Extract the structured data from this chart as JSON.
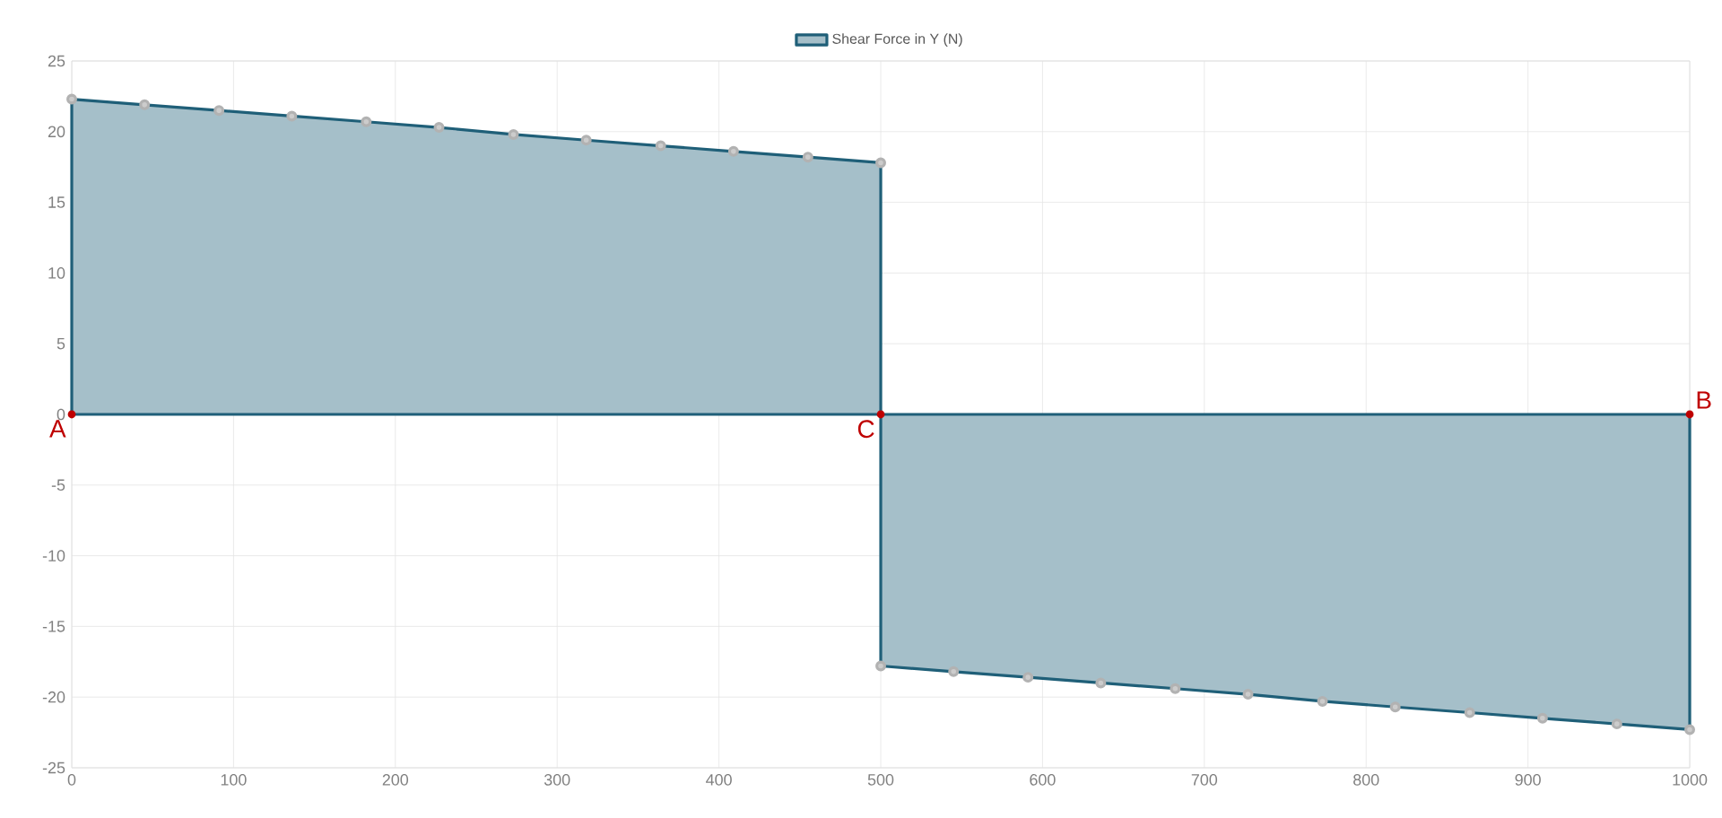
{
  "chart_data": {
    "type": "area",
    "legend": "top",
    "grid": true,
    "marker": "circle",
    "xlim": [
      0,
      1000
    ],
    "xticks": [
      0,
      100,
      200,
      300,
      400,
      500,
      600,
      700,
      800,
      900,
      1000
    ],
    "ylim": [
      -25,
      25
    ],
    "yticks": [
      -25,
      -20,
      -15,
      -10,
      -5,
      0,
      5,
      10,
      15,
      20,
      25
    ],
    "series": [
      {
        "name": "Shear Force in Y (N)",
        "color": "#1f5f78",
        "x": [
          0,
          45,
          91,
          136,
          182,
          227,
          273,
          318,
          364,
          409,
          455,
          500,
          500,
          545,
          591,
          636,
          682,
          727,
          773,
          818,
          864,
          909,
          955,
          1000
        ],
        "values": [
          22.3,
          21.9,
          21.5,
          21.1,
          20.7,
          20.3,
          19.8,
          19.4,
          19.0,
          18.6,
          18.2,
          17.8,
          -17.8,
          -18.2,
          -18.6,
          -19.0,
          -19.4,
          -19.8,
          -20.3,
          -20.7,
          -21.1,
          -21.5,
          -21.9,
          -22.3
        ]
      }
    ],
    "annotations": [
      {
        "text": "A",
        "x": 0,
        "y": 0
      },
      {
        "text": "C",
        "x": 500,
        "y": 0
      },
      {
        "text": "B",
        "x": 1000,
        "y": 0
      }
    ]
  }
}
